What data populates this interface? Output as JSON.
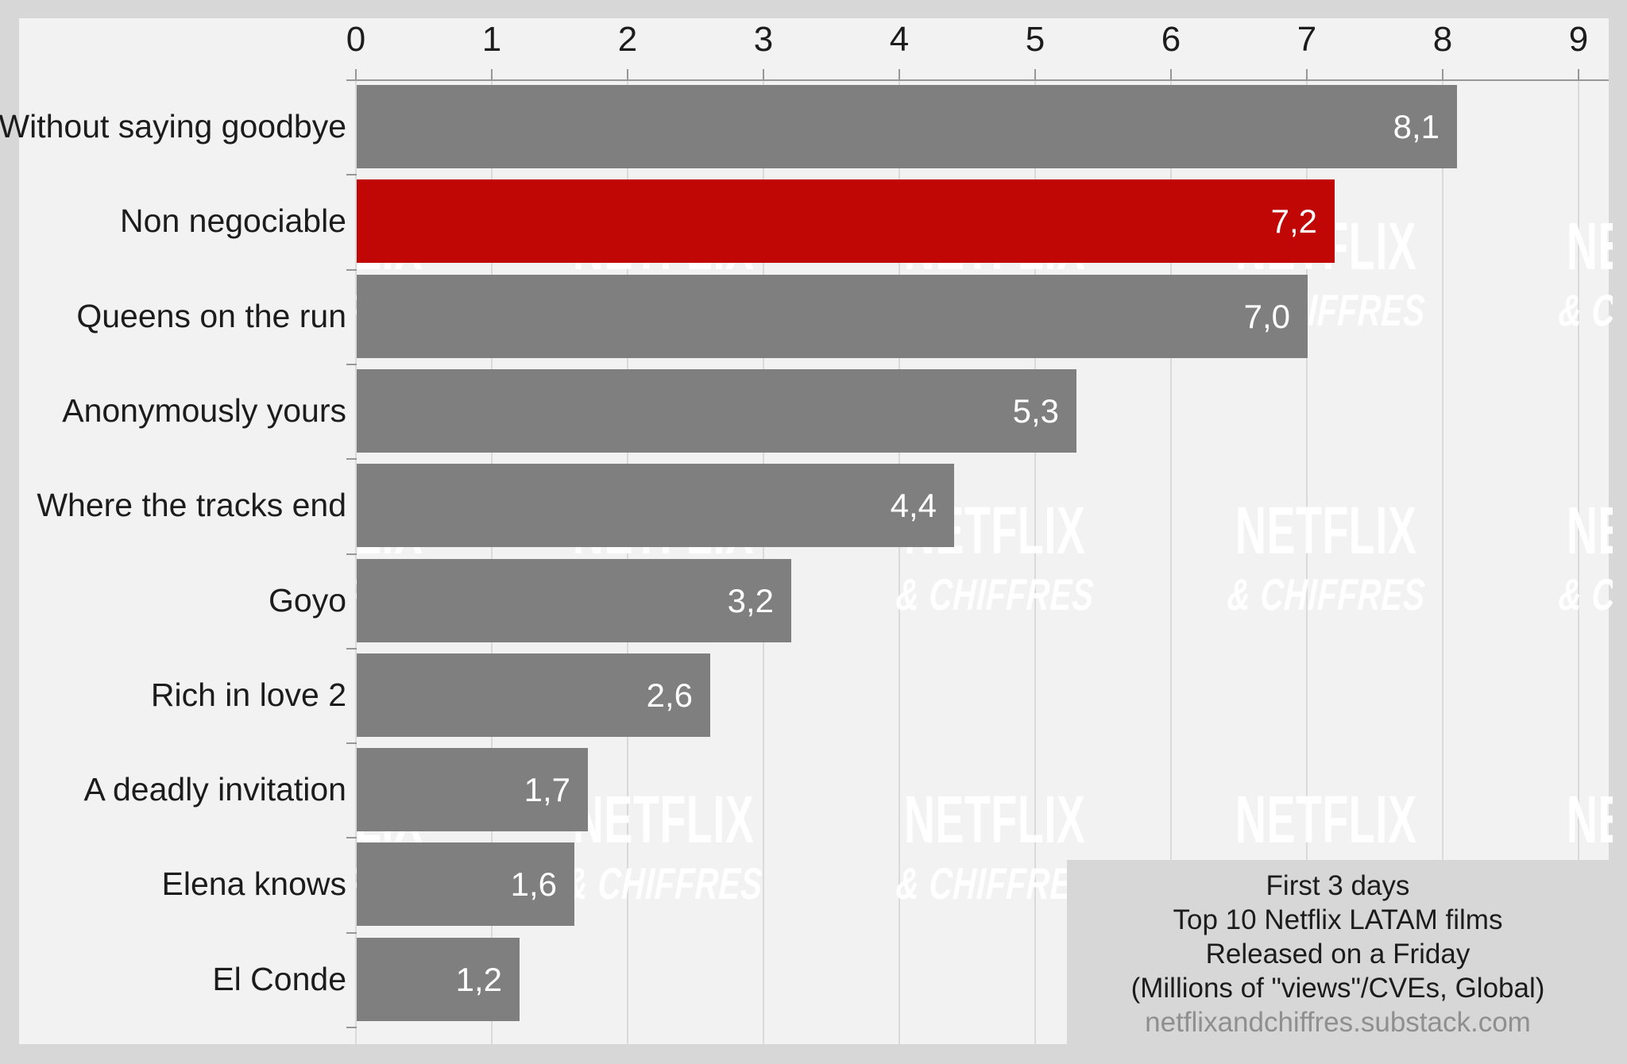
{
  "chart_data": {
    "type": "bar",
    "orientation": "horizontal",
    "categories": [
      "Without saying goodbye",
      "Non negociable",
      "Queens on the run",
      "Anonymously yours",
      "Where the tracks end",
      "Goyo",
      "Rich in love 2",
      "A deadly invitation",
      "Elena knows",
      "El Conde"
    ],
    "values": [
      8.1,
      7.2,
      7.0,
      5.3,
      4.4,
      3.2,
      2.6,
      1.7,
      1.6,
      1.2
    ],
    "value_labels": [
      "8,1",
      "7,2",
      "7,0",
      "5,3",
      "4,4",
      "3,2",
      "2,6",
      "1,7",
      "1,6",
      "1,2"
    ],
    "highlighted_category": "Non negociable",
    "highlight_index": 1,
    "title": "First 3 days Top 10 Netflix LATAM films Released on a Friday",
    "xlabel": "",
    "ylabel": "",
    "xlim": [
      0,
      9
    ],
    "x_ticks": [
      "0",
      "1",
      "2",
      "3",
      "4",
      "5",
      "6",
      "7",
      "8",
      "9"
    ],
    "grid": true,
    "legend": false
  },
  "axis": {
    "ticks": [
      "0",
      "1",
      "2",
      "3",
      "4",
      "5",
      "6",
      "7",
      "8",
      "9"
    ]
  },
  "films": [
    {
      "label": "Without saying goodbye",
      "value": 8.1,
      "display": "8,1",
      "highlight": false
    },
    {
      "label": "Non negociable",
      "value": 7.2,
      "display": "7,2",
      "highlight": true
    },
    {
      "label": "Queens on the run",
      "value": 7.0,
      "display": "7,0",
      "highlight": false
    },
    {
      "label": "Anonymously yours",
      "value": 5.3,
      "display": "5,3",
      "highlight": false
    },
    {
      "label": "Where the tracks end",
      "value": 4.4,
      "display": "4,4",
      "highlight": false
    },
    {
      "label": "Goyo",
      "value": 3.2,
      "display": "3,2",
      "highlight": false
    },
    {
      "label": "Rich in love 2",
      "value": 2.6,
      "display": "2,6",
      "highlight": false
    },
    {
      "label": "A deadly invitation",
      "value": 1.7,
      "display": "1,7",
      "highlight": false
    },
    {
      "label": "Elena knows",
      "value": 1.6,
      "display": "1,6",
      "highlight": false
    },
    {
      "label": "El Conde",
      "value": 1.2,
      "display": "1,2",
      "highlight": false
    }
  ],
  "watermark": {
    "line1": "NETFLIX",
    "line2": "& CHIFFRES"
  },
  "caption": {
    "lines": [
      "First 3 days",
      "Top 10 Netflix LATAM films",
      "Released on a Friday",
      "(Millions of \"views\"/CVEs, Global)"
    ],
    "link": "netflixandchiffres.substack.com"
  },
  "colors": {
    "margin_bg": "#d7d7d7",
    "plot_bg": "#f2f2f2",
    "grid": "#dadada",
    "axis": "#979797",
    "bar_gray": "#7f7f7f",
    "bar_red": "#c10606",
    "watermark": "rgba(255,255,255,0.95)"
  }
}
